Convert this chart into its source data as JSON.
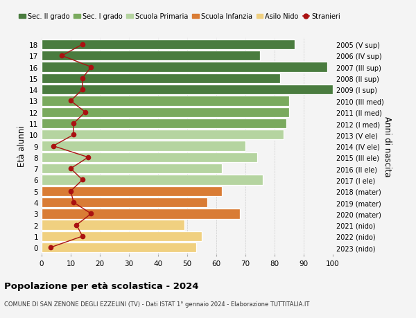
{
  "ages": [
    18,
    17,
    16,
    15,
    14,
    13,
    12,
    11,
    10,
    9,
    8,
    7,
    6,
    5,
    4,
    3,
    2,
    1,
    0
  ],
  "right_labels": [
    "2005 (V sup)",
    "2006 (IV sup)",
    "2007 (III sup)",
    "2008 (II sup)",
    "2009 (I sup)",
    "2010 (III med)",
    "2011 (II med)",
    "2012 (I med)",
    "2013 (V ele)",
    "2014 (IV ele)",
    "2015 (III ele)",
    "2016 (II ele)",
    "2017 (I ele)",
    "2018 (mater)",
    "2019 (mater)",
    "2020 (mater)",
    "2021 (nido)",
    "2022 (nido)",
    "2023 (nido)"
  ],
  "bar_values": [
    87,
    75,
    98,
    82,
    100,
    85,
    85,
    84,
    83,
    70,
    74,
    62,
    76,
    62,
    57,
    68,
    49,
    55,
    53
  ],
  "bar_colors": [
    "#4a7c3f",
    "#4a7c3f",
    "#4a7c3f",
    "#4a7c3f",
    "#4a7c3f",
    "#7aaa5e",
    "#7aaa5e",
    "#7aaa5e",
    "#b5d4a0",
    "#b5d4a0",
    "#b5d4a0",
    "#b5d4a0",
    "#b5d4a0",
    "#d97c35",
    "#d97c35",
    "#d97c35",
    "#f0d080",
    "#f0d080",
    "#f0d080"
  ],
  "stranieri_values": [
    14,
    7,
    17,
    14,
    14,
    10,
    15,
    11,
    11,
    4,
    16,
    10,
    14,
    10,
    11,
    17,
    12,
    14,
    3
  ],
  "stranieri_color": "#aa1111",
  "legend_items": [
    {
      "label": "Sec. II grado",
      "color": "#4a7c3f"
    },
    {
      "label": "Sec. I grado",
      "color": "#7aaa5e"
    },
    {
      "label": "Scuola Primaria",
      "color": "#b5d4a0"
    },
    {
      "label": "Scuola Infanzia",
      "color": "#d97c35"
    },
    {
      "label": "Asilo Nido",
      "color": "#f0d080"
    },
    {
      "label": "Stranieri",
      "color": "#aa1111"
    }
  ],
  "ylabel_left": "Età alunni",
  "ylabel_right": "Anni di nascita",
  "title": "Popolazione per età scolastica - 2024",
  "subtitle": "COMUNE DI SAN ZENONE DEGLI EZZELINI (TV) - Dati ISTAT 1° gennaio 2024 - Elaborazione TUTTITALIA.IT",
  "xlim": [
    0,
    100
  ],
  "bg_color": "#f4f4f4"
}
